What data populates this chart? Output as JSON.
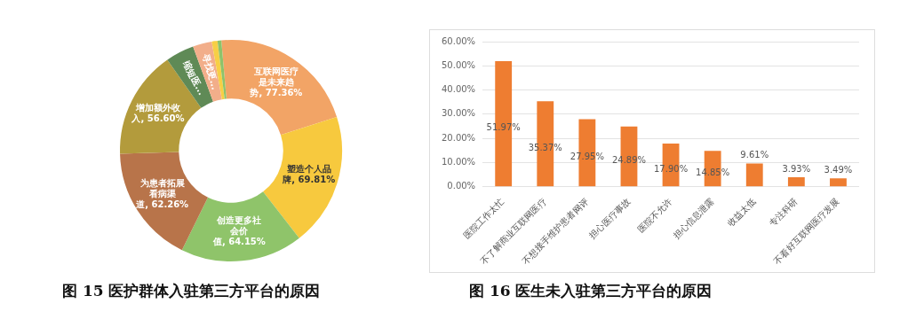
{
  "chart_data": [
    {
      "type": "donut",
      "title": "图  15 医护群体入驻第三方平台的原因",
      "categories": [
        "互联网医疗是未来趋势",
        "塑造个人品牌",
        "创造更多社会价值",
        "为患者拓展看病渠道",
        "增加额外收入",
        "缩短医...",
        "寻找更...",
        null,
        null
      ],
      "values": [
        77.36,
        69.81,
        64.15,
        62.26,
        56.6,
        15,
        10,
        3,
        2
      ],
      "value_labels": [
        "77.36%",
        "69.81%",
        "64.15%",
        "62.26%",
        "56.60%",
        null,
        null,
        null,
        null
      ],
      "colors": [
        "#f2a466",
        "#f7c93e",
        "#8fc46a",
        "#b8744a",
        "#b39b3c",
        "#5f8a56",
        "#f2ae8a",
        "#f7cf45",
        "#8ec36a"
      ]
    },
    {
      "type": "bar",
      "title": "图  16 医生未入驻第三方平台的原因",
      "categories": [
        "医院工作太忙",
        "不了解商业互联网医疗",
        "不想接手维护患者网评",
        "担心医疗事故",
        "医院不允许",
        "担心信息泄露",
        "收益太低",
        "专注科研",
        "不看好互联网医疗发展"
      ],
      "values": [
        51.97,
        35.37,
        27.95,
        24.89,
        17.9,
        14.85,
        9.61,
        3.93,
        3.49
      ],
      "value_labels": [
        "51.97%",
        "35.37%",
        "27.95%",
        "24.89%",
        "17.90%",
        "14.85%",
        "9.61%",
        "3.93%",
        "3.49%"
      ],
      "color": "#ee7d31",
      "ylim": [
        0,
        60
      ],
      "yticks": [
        {
          "value": 0,
          "label": "0.00%"
        },
        {
          "value": 10,
          "label": "10.00%"
        },
        {
          "value": 20,
          "label": "20.00%"
        },
        {
          "value": 30,
          "label": "30.00%"
        },
        {
          "value": 40,
          "label": "40.00%"
        },
        {
          "value": 50,
          "label": "50.00%"
        },
        {
          "value": 60,
          "label": "60.00%"
        }
      ],
      "grid": "y"
    }
  ]
}
